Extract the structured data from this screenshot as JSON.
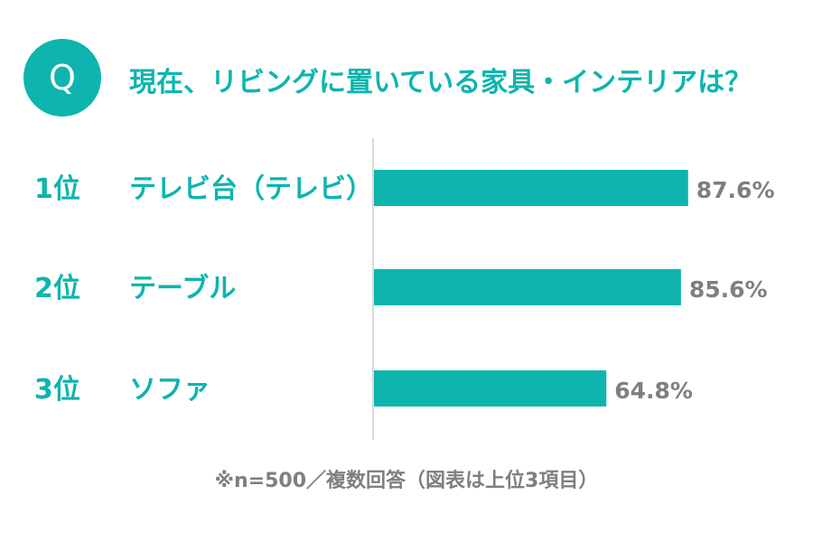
{
  "question": {
    "badge": "Q",
    "text": "現在、リビングに置いている家具・インテリアは？"
  },
  "colors": {
    "accent": "#0db5ae",
    "value_text": "#7f7f7f",
    "axis": "#d9d9d9"
  },
  "chart_data": {
    "type": "bar",
    "orientation": "horizontal",
    "categories": [
      "テレビ台（テレビ）",
      "テーブル",
      "ソファ"
    ],
    "ranks": [
      "1位",
      "2位",
      "3位"
    ],
    "values": [
      87.6,
      85.6,
      64.8
    ],
    "value_labels": [
      "87.6%",
      "85.6%",
      "64.8%"
    ],
    "xlim": [
      0,
      100
    ],
    "grid": false,
    "legend": "none"
  },
  "footnote": "※n=500／複数回答（図表は上位3項目）"
}
